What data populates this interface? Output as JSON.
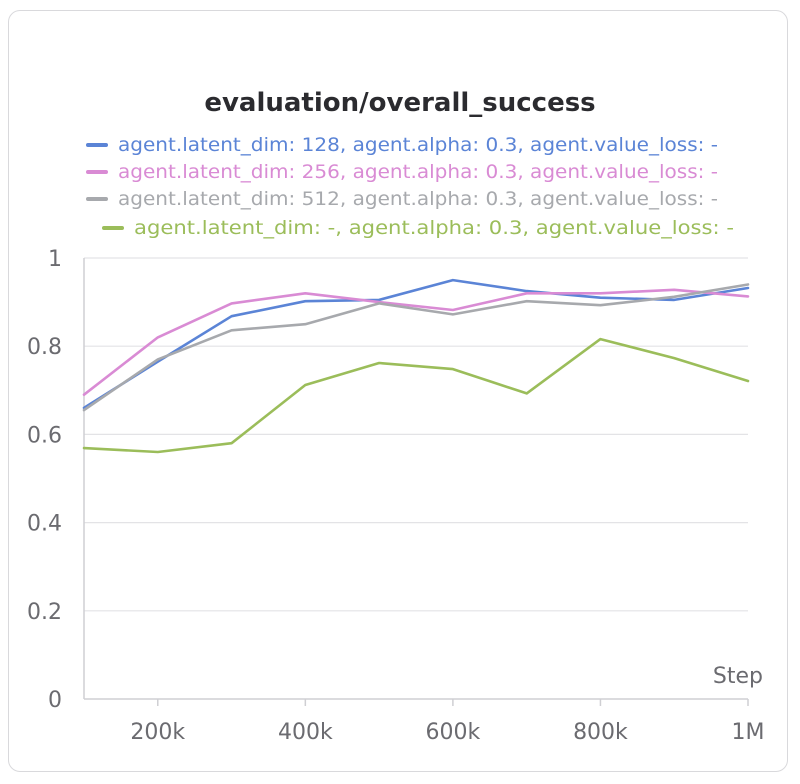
{
  "chart_data": {
    "type": "line",
    "title": "evaluation/overall_success",
    "xlabel": "Step",
    "ylabel": "",
    "x": [
      100000,
      200000,
      300000,
      400000,
      500000,
      600000,
      700000,
      800000,
      900000,
      1000000
    ],
    "xlim": [
      100000,
      1000000
    ],
    "ylim": [
      0,
      1
    ],
    "x_ticks": [
      {
        "value": 200000,
        "label": "200k"
      },
      {
        "value": 400000,
        "label": "400k"
      },
      {
        "value": 600000,
        "label": "600k"
      },
      {
        "value": 800000,
        "label": "800k"
      },
      {
        "value": 1000000,
        "label": "1M"
      }
    ],
    "y_ticks": [
      {
        "value": 0,
        "label": "0"
      },
      {
        "value": 0.2,
        "label": "0.2"
      },
      {
        "value": 0.4,
        "label": "0.4"
      },
      {
        "value": 0.6,
        "label": "0.6"
      },
      {
        "value": 0.8,
        "label": "0.8"
      },
      {
        "value": 1,
        "label": "1"
      }
    ],
    "grid": true,
    "legend_position": "top",
    "series": [
      {
        "name": "agent.latent_dim: 128, agent.alpha: 0.3, agent.value_loss: -",
        "color": "#5b84d6",
        "values": [
          0.66,
          0.765,
          0.868,
          0.902,
          0.905,
          0.95,
          0.925,
          0.91,
          0.905,
          0.932
        ]
      },
      {
        "name": "agent.latent_dim: 256, agent.alpha: 0.3, agent.value_loss: -",
        "color": "#d98bd4",
        "values": [
          0.69,
          0.82,
          0.897,
          0.92,
          0.9,
          0.882,
          0.92,
          0.92,
          0.928,
          0.913
        ]
      },
      {
        "name": "agent.latent_dim: 512, agent.alpha: 0.3, agent.value_loss: -",
        "color": "#a7a9ad",
        "values": [
          0.655,
          0.77,
          0.836,
          0.85,
          0.897,
          0.872,
          0.902,
          0.893,
          0.912,
          0.94
        ]
      },
      {
        "name": "agent.latent_dim: -, agent.alpha: 0.3, agent.value_loss: -",
        "color": "#9bbd5a",
        "values": [
          0.569,
          0.56,
          0.58,
          0.712,
          0.762,
          0.748,
          0.693,
          0.816,
          0.773,
          0.721
        ]
      }
    ]
  }
}
